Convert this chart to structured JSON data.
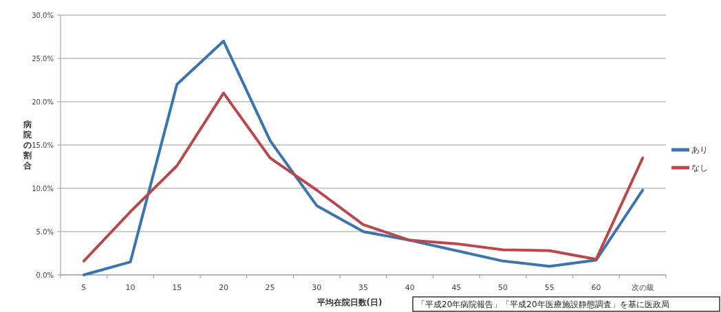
{
  "chart_data": {
    "type": "line",
    "xlabel": "平均在院日数(日)",
    "ylabel": "病院の割合",
    "categories": [
      "5",
      "10",
      "15",
      "20",
      "25",
      "30",
      "35",
      "40",
      "45",
      "50",
      "55",
      "60",
      "次の級"
    ],
    "series": [
      {
        "name": "あり",
        "color": "#3b74ae",
        "values": [
          0,
          1.5,
          22,
          27,
          15.5,
          8,
          5,
          4,
          2.8,
          1.6,
          1,
          1.7,
          9.8
        ]
      },
      {
        "name": "なし",
        "color": "#b9474b",
        "values": [
          1.6,
          7.3,
          12.6,
          21,
          13.5,
          9.8,
          5.8,
          4,
          3.6,
          2.9,
          2.8,
          1.8,
          13.5
        ]
      }
    ],
    "ylim": [
      0,
      30
    ],
    "yticks": [
      {
        "value": 0,
        "label": "0.0%"
      },
      {
        "value": 5,
        "label": "5.0%"
      },
      {
        "value": 10,
        "label": "10.0%"
      },
      {
        "value": 15,
        "label": "15.0%"
      },
      {
        "value": 20,
        "label": "20.0%"
      },
      {
        "value": 25,
        "label": "25.0%"
      },
      {
        "value": 30,
        "label": "30.0%"
      }
    ],
    "grid": "y",
    "legend": "right",
    "marker": "none",
    "line_style": "solid",
    "annotations": [
      "「平成20年病院報告」「平成20年医療施設静態調査」を基に医政局"
    ]
  }
}
